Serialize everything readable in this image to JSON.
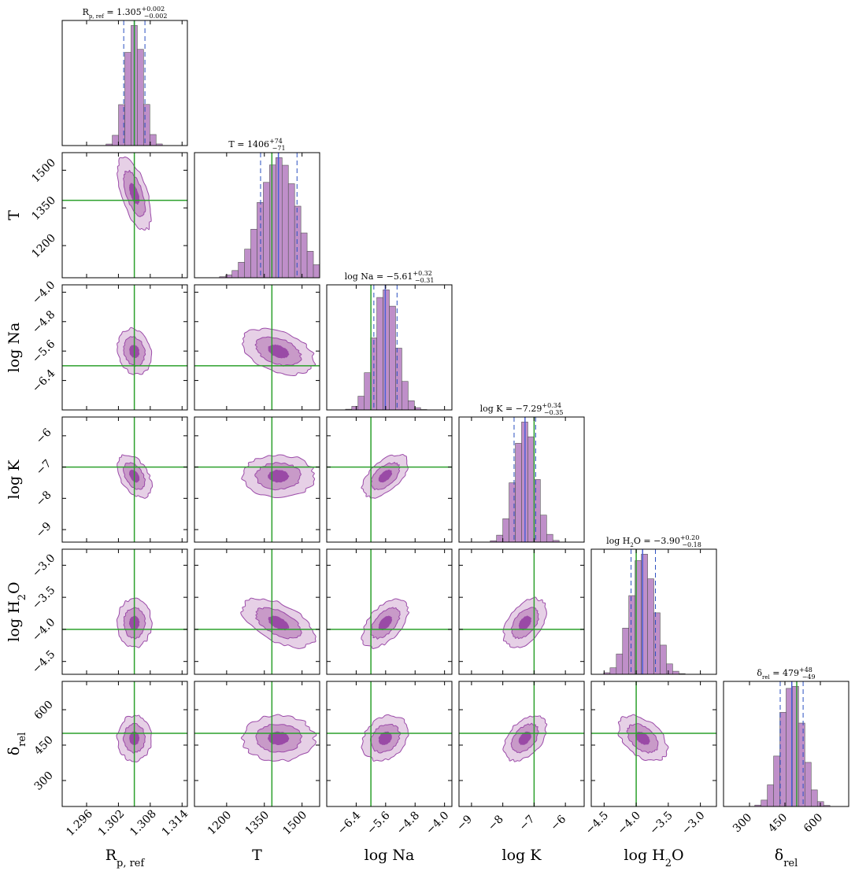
{
  "chart_data": {
    "type": "corner",
    "params": [
      {
        "key": "R",
        "base": "R",
        "sub": "p, ref",
        "range": [
          1.2914,
          1.315
        ],
        "ticks": [
          1.296,
          1.302,
          1.308,
          1.314
        ],
        "tick_labels": [
          "1.296",
          "1.302",
          "1.308",
          "1.314"
        ],
        "truth": 1.305,
        "median": 1.305,
        "q16": 1.303,
        "q84": 1.307,
        "title_text": "1.305",
        "title_plus": "+0.002",
        "title_minus": "−0.002",
        "std": 0.0016
      },
      {
        "key": "T",
        "base": "T",
        "sub": "",
        "range": [
          1072,
          1570
        ],
        "ticks": [
          1200,
          1350,
          1500
        ],
        "tick_labels": [
          "1200",
          "1350",
          "1500"
        ],
        "truth": 1380,
        "median": 1406,
        "q16": 1335,
        "q84": 1480,
        "title_text": "1406",
        "title_plus": "+74",
        "title_minus": "−71",
        "std": 72
      },
      {
        "key": "Na",
        "base": "log Na",
        "sub": "",
        "range": [
          -7.2,
          -3.8
        ],
        "ticks": [
          -6.4,
          -5.6,
          -4.8,
          -4.0
        ],
        "tick_labels": [
          "−6.4",
          "−5.6",
          "−4.8",
          "−4.0"
        ],
        "truth": -6.0,
        "median": -5.61,
        "q16": -5.92,
        "q84": -5.29,
        "title_text": "−5.61",
        "title_plus": "+0.32",
        "title_minus": "−0.31",
        "std": 0.31
      },
      {
        "key": "K",
        "base": "log K",
        "sub": "",
        "range": [
          -9.4,
          -5.4
        ],
        "ticks": [
          -9,
          -8,
          -7,
          -6
        ],
        "tick_labels": [
          "−9",
          "−8",
          "−7",
          "−6"
        ],
        "truth": -7.0,
        "median": -7.29,
        "q16": -7.64,
        "q84": -6.95,
        "title_text": "−7.29",
        "title_plus": "+0.34",
        "title_minus": "−0.35",
        "std": 0.34
      },
      {
        "key": "H2O",
        "base": "log H",
        "sub": "2",
        "tail": "O",
        "range": [
          -4.7,
          -2.75
        ],
        "ticks": [
          -4.5,
          -4.0,
          -3.5,
          -3.0
        ],
        "tick_labels": [
          "−4.5",
          "−4.0",
          "−3.5",
          "−3.0"
        ],
        "truth": -4.0,
        "median": -3.9,
        "q16": -4.08,
        "q84": -3.7,
        "title_text": "−3.90",
        "title_plus": "+0.20",
        "title_minus": "−0.18",
        "std": 0.19
      },
      {
        "key": "delta",
        "base": "δ",
        "sub": "rel",
        "range": [
          190,
          720
        ],
        "ticks": [
          300,
          450,
          600
        ],
        "tick_labels": [
          "300",
          "450",
          "600"
        ],
        "truth": 500,
        "median": 479,
        "q16": 430,
        "q84": 527,
        "title_text": "479",
        "title_plus": "+48",
        "title_minus": "−49",
        "std": 48
      }
    ],
    "correlations": [
      [
        0,
        1,
        -0.6
      ],
      [
        0,
        2,
        -0.15
      ],
      [
        0,
        3,
        -0.45
      ],
      [
        0,
        4,
        0.0
      ],
      [
        0,
        5,
        0.0
      ],
      [
        1,
        2,
        -0.4
      ],
      [
        1,
        3,
        0.0
      ],
      [
        1,
        4,
        -0.55
      ],
      [
        1,
        5,
        0.0
      ],
      [
        2,
        3,
        0.55
      ],
      [
        2,
        4,
        0.55
      ],
      [
        2,
        5,
        0.25
      ],
      [
        3,
        4,
        0.45
      ],
      [
        3,
        5,
        0.45
      ],
      [
        4,
        5,
        -0.45
      ]
    ],
    "colors": {
      "contour_fill": [
        "#e6d0e6",
        "#c89ac8",
        "#9a4aa6"
      ],
      "contour_line": "#9b4aa8",
      "hist_fill": "#bf8fc9",
      "hist_edge": "#555555",
      "median_line": "#4b5fd6",
      "quantile_line": "#2a4fc0",
      "truth_line": "#2ca02c"
    }
  }
}
